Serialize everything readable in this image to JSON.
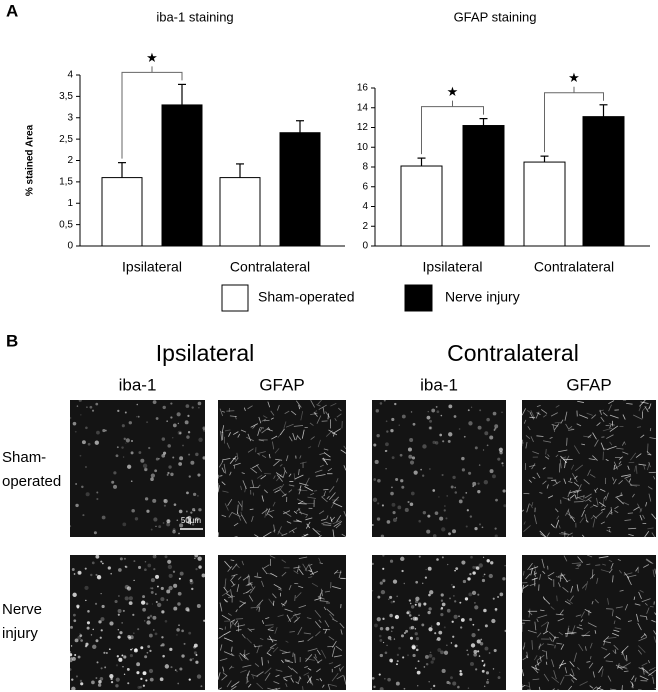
{
  "chart_data": [
    {
      "type": "bar",
      "title": "iba-1 staining",
      "y_label": "% stained Area",
      "categories": [
        "Ipsilateral",
        "Contralateral"
      ],
      "series": [
        {
          "name": "Sham-operated",
          "color": "#ffffff",
          "values": [
            1.6,
            1.6
          ],
          "errors": [
            0.35,
            0.32
          ]
        },
        {
          "name": "Nerve injury",
          "color": "#000000",
          "values": [
            3.3,
            2.65
          ],
          "errors": [
            0.48,
            0.28
          ]
        }
      ],
      "significance_marks": [
        "★",
        null
      ],
      "ylim": [
        0,
        4
      ],
      "yticks": [
        0,
        {
          "value": 0.5,
          "label": "0,5"
        },
        1,
        {
          "value": 1.5,
          "label": "1,5"
        },
        2,
        {
          "value": 2.5,
          "label": "2,5"
        },
        3,
        {
          "value": 3.5,
          "label": "3,5"
        },
        4
      ],
      "grid": false
    },
    {
      "type": "bar",
      "title": "GFAP staining",
      "categories": [
        "Ipsilateral",
        "Contralateral"
      ],
      "series": [
        {
          "name": "Sham-operated",
          "color": "#ffffff",
          "values": [
            8.1,
            8.5
          ],
          "errors": [
            0.8,
            0.6
          ]
        },
        {
          "name": "Nerve injury",
          "color": "#000000",
          "values": [
            12.2,
            13.1
          ],
          "errors": [
            0.7,
            1.2
          ]
        }
      ],
      "significance_marks": [
        "★",
        "★"
      ],
      "ylim": [
        0,
        16
      ],
      "yticks": [
        0,
        2,
        4,
        6,
        8,
        10,
        12,
        14,
        16
      ],
      "grid": false
    }
  ],
  "panel_labels": [
    "A",
    "B"
  ],
  "panel_b": {
    "side_headers": [
      "Ipsilateral",
      "Contralateral"
    ],
    "column_headers": [
      "iba-1",
      "GFAP",
      "iba-1",
      "GFAP"
    ],
    "row_labels": [
      [
        "Sham-",
        "operated"
      ],
      [
        "Nerve",
        "injury"
      ]
    ],
    "scale_bar": "50µm"
  }
}
